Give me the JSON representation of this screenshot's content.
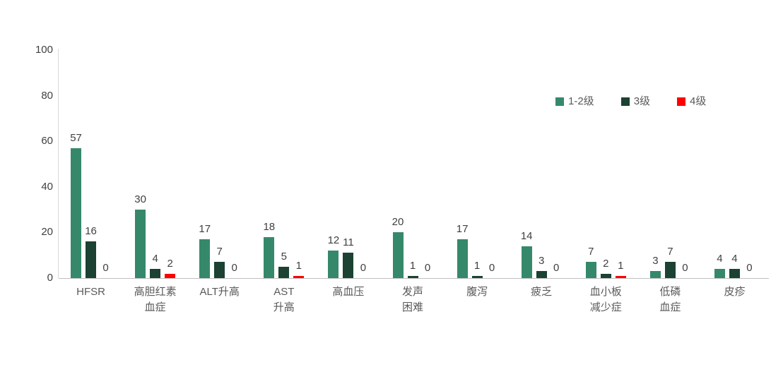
{
  "chart_data": {
    "type": "bar",
    "title": "",
    "xlabel": "",
    "ylabel": "",
    "categories": [
      "HFSR",
      "高胆红素血症",
      "ALT升高",
      "AST升高",
      "高血压",
      "发声困难",
      "腹泻",
      "疲乏",
      "血小板减少症",
      "低磷血症",
      "皮疹"
    ],
    "category_display": [
      "HFSR",
      "高胆红素\n血症",
      "ALT升高",
      "AST\n升高",
      "高血压",
      "发声\n困难",
      "腹泻",
      "疲乏",
      "血小板\n减少症",
      "低磷\n血症",
      "皮疹"
    ],
    "series": [
      {
        "name": "1-2级",
        "color": "#35896A",
        "values": [
          57,
          30,
          17,
          18,
          12,
          20,
          17,
          14,
          7,
          3,
          4
        ]
      },
      {
        "name": "3级",
        "color": "#1B4232",
        "values": [
          16,
          4,
          7,
          5,
          11,
          1,
          1,
          3,
          2,
          7,
          4
        ]
      },
      {
        "name": "4级",
        "color": "#FF0000",
        "values": [
          0,
          2,
          0,
          1,
          0,
          0,
          0,
          0,
          1,
          0,
          0
        ]
      }
    ],
    "ylim": [
      0,
      100
    ],
    "yticks": [
      0,
      20,
      40,
      60,
      80,
      100
    ],
    "grid": false,
    "legend_position": "top-right",
    "value_labels": true,
    "colors": {
      "background": "#FFFFFF",
      "x_axis_line": "#BFBFBF",
      "y_axis_line": "#D9D9D9",
      "tick_text": "#404040",
      "value_text": "#404040",
      "category_text": "#595959",
      "legend_text": "#595959"
    }
  }
}
